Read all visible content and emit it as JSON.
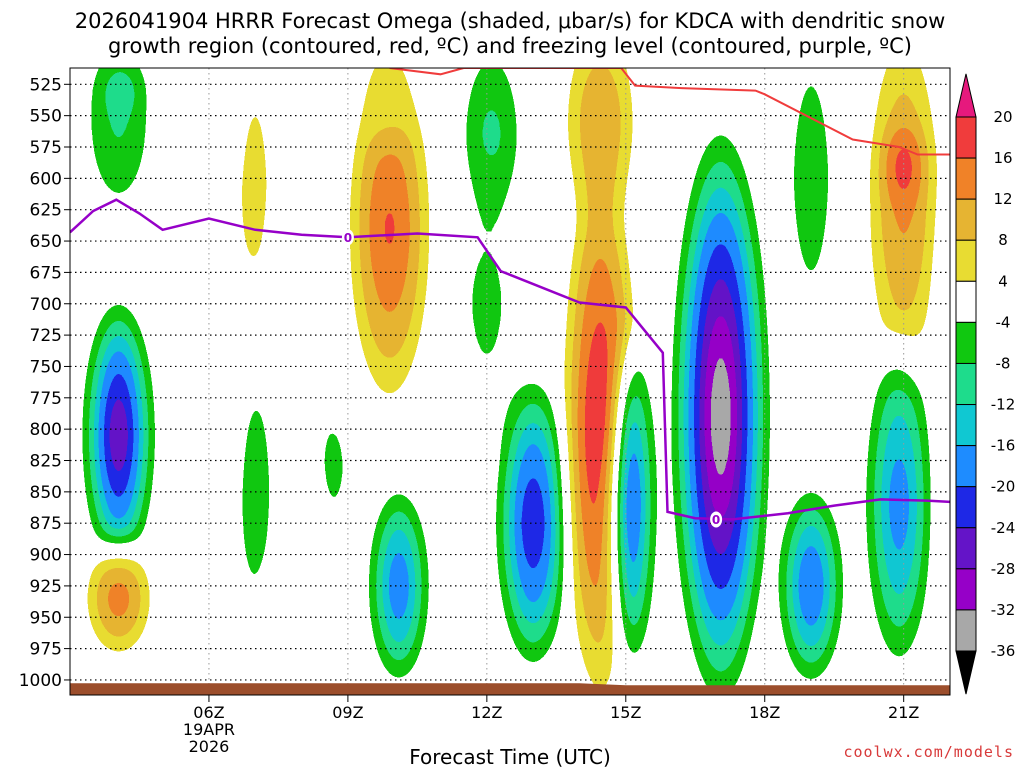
{
  "chart_data": {
    "type": "heatmap",
    "title_line1": "2026041904 HRRR Forecast Omega (shaded, μbar/s) for KDCA with dendritic snow",
    "title_line2": "growth region (contoured, red, ºC) and freezing level (contoured, purple, ºC)",
    "xlabel": "Forecast Time (UTC)",
    "x_range_hours": [
      3,
      22
    ],
    "x_ticks": [
      {
        "hour": 6,
        "label": "06Z",
        "sub1": "19APR",
        "sub2": "2026"
      },
      {
        "hour": 9,
        "label": "09Z"
      },
      {
        "hour": 12,
        "label": "12Z"
      },
      {
        "hour": 15,
        "label": "15Z"
      },
      {
        "hour": 18,
        "label": "18Z"
      },
      {
        "hour": 21,
        "label": "21Z"
      }
    ],
    "y_range_hpa": [
      512,
      1012
    ],
    "y_ticks": [
      525,
      550,
      575,
      600,
      625,
      650,
      675,
      700,
      725,
      750,
      775,
      800,
      825,
      850,
      875,
      900,
      925,
      950,
      975,
      1000
    ],
    "colorbar": {
      "levels": [
        -36,
        -32,
        -28,
        -24,
        -20,
        -16,
        -12,
        -8,
        -4,
        4,
        8,
        12,
        16,
        20
      ],
      "labels": [
        "-36",
        "-32",
        "-28",
        "-24",
        "-20",
        "-16",
        "-12",
        "-8",
        "-4",
        "4",
        "8",
        "12",
        "16",
        "20"
      ],
      "colors": [
        "#000000",
        "#a8a8a8",
        "#9600c8",
        "#6414c8",
        "#1e28e6",
        "#1e8cff",
        "#10c8d2",
        "#1edc8c",
        "#10c810",
        "#ffffff",
        "#e8dc32",
        "#e6b432",
        "#f08228",
        "#f03c3c",
        "#e6197d"
      ]
    },
    "omega_cells": [
      {
        "h": 4.05,
        "p": 555,
        "rh": 0.9,
        "rp": 90,
        "v": -10
      },
      {
        "h": 4.1,
        "p": 530,
        "rh": 0.5,
        "rp": 25,
        "v": -13
      },
      {
        "h": 4.05,
        "p": 805,
        "rh": 0.8,
        "rp": 120,
        "v": -34
      },
      {
        "h": 4.05,
        "p": 935,
        "rh": 0.8,
        "rp": 55,
        "v": 17
      },
      {
        "h": 5.9,
        "p": 915,
        "rh": 0.25,
        "rp": 90,
        "v": 5
      },
      {
        "h": 7.0,
        "p": 605,
        "rh": 0.4,
        "rp": 130,
        "v": 9
      },
      {
        "h": 6.3,
        "p": 720,
        "rh": 0.5,
        "rp": 190,
        "v": 5
      },
      {
        "h": 7.0,
        "p": 850,
        "rh": 0.4,
        "rp": 120,
        "v": -12
      },
      {
        "h": 7.5,
        "p": 930,
        "rh": 0.15,
        "rp": 40,
        "v": 5
      },
      {
        "h": 9.9,
        "p": 640,
        "rh": 1.0,
        "rp": 165,
        "v": 19
      },
      {
        "h": 9.8,
        "p": 530,
        "rh": 0.9,
        "rp": 55,
        "v": 5
      },
      {
        "h": 8.2,
        "p": 700,
        "rh": 0.4,
        "rp": 140,
        "v": -6
      },
      {
        "h": 8.7,
        "p": 830,
        "rh": 0.5,
        "rp": 80,
        "v": -7
      },
      {
        "h": 10.1,
        "p": 925,
        "rh": 0.7,
        "rp": 90,
        "v": -24
      },
      {
        "h": 12.1,
        "p": 565,
        "rh": 0.8,
        "rp": 90,
        "v": -11
      },
      {
        "h": 12.0,
        "p": 700,
        "rh": 0.9,
        "rp": 130,
        "v": -6
      },
      {
        "h": 13.0,
        "p": 875,
        "rh": 0.85,
        "rp": 130,
        "v": -29
      },
      {
        "h": 14.45,
        "p": 800,
        "rh": 0.85,
        "rp": 250,
        "v": 24
      },
      {
        "h": 14.45,
        "p": 555,
        "rh": 0.9,
        "rp": 100,
        "v": 14
      },
      {
        "h": 15.1,
        "p": 860,
        "rh": 0.55,
        "rp": 150,
        "v": -30
      },
      {
        "h": 17.05,
        "p": 790,
        "rh": 1.1,
        "rp": 250,
        "v": -40
      },
      {
        "h": 19.0,
        "p": 925,
        "rh": 0.75,
        "rp": 90,
        "v": -25
      },
      {
        "h": 19.0,
        "p": 600,
        "rh": 0.7,
        "rp": 150,
        "v": -8
      },
      {
        "h": 21.0,
        "p": 620,
        "rh": 0.9,
        "rp": 170,
        "v": 15
      },
      {
        "h": 21.0,
        "p": 590,
        "rh": 0.45,
        "rp": 40,
        "v": 21
      },
      {
        "h": 20.9,
        "p": 860,
        "rh": 0.8,
        "rp": 150,
        "v": -22
      },
      {
        "h": 22.1,
        "p": 680,
        "rh": 0.4,
        "rp": 90,
        "v": -6
      },
      {
        "h": 22.1,
        "p": 880,
        "rh": 0.4,
        "rp": 150,
        "v": 5
      }
    ],
    "dgz_contour_hpa": [
      {
        "h": 9.9,
        "p": 512
      },
      {
        "h": 11.0,
        "p": 517
      },
      {
        "h": 11.5,
        "p": 512
      },
      {
        "h": 14.9,
        "p": 512
      },
      {
        "h": 15.2,
        "p": 526
      },
      {
        "h": 16.2,
        "p": 528
      },
      {
        "h": 17.8,
        "p": 530
      },
      {
        "h": 18.0,
        "p": 533
      },
      {
        "h": 19.9,
        "p": 569
      },
      {
        "h": 20.9,
        "p": 575
      },
      {
        "h": 21.3,
        "p": 581
      },
      {
        "h": 22.0,
        "p": 581
      }
    ],
    "freezing_level_hpa": [
      {
        "h": 3.0,
        "p": 643
      },
      {
        "h": 3.5,
        "p": 626
      },
      {
        "h": 4.0,
        "p": 617
      },
      {
        "h": 4.5,
        "p": 628
      },
      {
        "h": 5.0,
        "p": 641
      },
      {
        "h": 6.0,
        "p": 632
      },
      {
        "h": 7.0,
        "p": 641
      },
      {
        "h": 8.0,
        "p": 645
      },
      {
        "h": 9.0,
        "p": 647
      },
      {
        "h": 10.5,
        "p": 644
      },
      {
        "h": 11.8,
        "p": 647
      },
      {
        "h": 12.3,
        "p": 674
      },
      {
        "h": 14.0,
        "p": 699
      },
      {
        "h": 15.0,
        "p": 703
      },
      {
        "h": 15.8,
        "p": 739
      },
      {
        "h": 15.9,
        "p": 866
      },
      {
        "h": 16.5,
        "p": 871
      },
      {
        "h": 17.3,
        "p": 872
      },
      {
        "h": 18.5,
        "p": 867
      },
      {
        "h": 19.5,
        "p": 861
      },
      {
        "h": 20.5,
        "p": 856
      },
      {
        "h": 21.5,
        "p": 857
      },
      {
        "h": 22.0,
        "p": 858
      }
    ],
    "contour_labels": [
      {
        "h": 9.0,
        "p": 647,
        "text": "0",
        "color": "#9600c8"
      },
      {
        "h": 16.95,
        "p": 872,
        "text": "0",
        "color": "#9600c8"
      }
    ],
    "ground_level_hpa": 1005,
    "ground_color": "#9c4e2c",
    "credit": "coolwx.com/models"
  }
}
